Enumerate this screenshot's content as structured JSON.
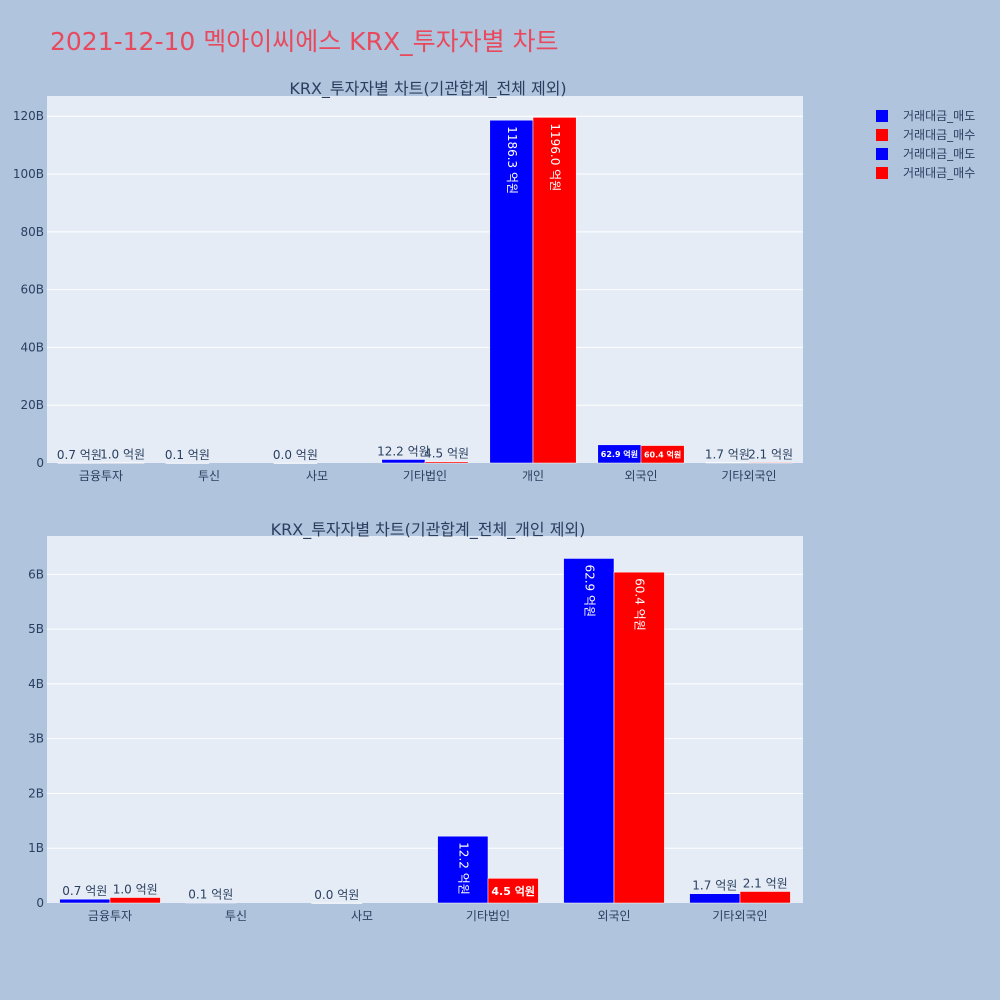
{
  "page": {
    "title": "2021-12-10 멕아이씨에스 KRX_투자자별 차트",
    "title_color": "#e8495d",
    "background": "#b0c4de",
    "plot_background": "#e5ecf6"
  },
  "legend": {
    "placement": "top-right",
    "items": [
      {
        "label": "거래대금_매도",
        "color": "#0000ff"
      },
      {
        "label": "거래대금_매수",
        "color": "#ff0000"
      },
      {
        "label": "거래대금_매도",
        "color": "#0000ff"
      },
      {
        "label": "거래대금_매수",
        "color": "#ff0000"
      }
    ]
  },
  "chart_data": [
    {
      "type": "bar",
      "title": "KRX_투자자별 차트(기관합계_전체 제외)",
      "categories": [
        "금융투자",
        "투신",
        "사모",
        "기타법인",
        "개인",
        "외국인",
        "기타외국인"
      ],
      "ylim": [
        0,
        127
      ],
      "yticks": [
        0,
        20,
        40,
        60,
        80,
        100,
        120
      ],
      "ytick_labels": [
        "0",
        "20B",
        "40B",
        "60B",
        "80B",
        "100B",
        "120B"
      ],
      "grid": true,
      "series": [
        {
          "name": "거래대금_매도",
          "color": "#0000ff",
          "values": [
            0.07,
            0.01,
            0.0,
            1.22,
            118.63,
            6.29,
            0.17
          ],
          "labels": [
            "0.7 억원",
            "0.1 억원",
            "0.0 억원",
            "12.2 억원",
            "1186.3 억원",
            "62.9 억원",
            "1.7 억원"
          ]
        },
        {
          "name": "거래대금_매수",
          "color": "#ff0000",
          "values": [
            0.1,
            null,
            null,
            0.45,
            119.6,
            6.04,
            0.21
          ],
          "labels": [
            "1.0 억원",
            null,
            null,
            "4.5 억원",
            "1196.0 억원",
            "60.4 억원",
            "2.1 억원"
          ]
        }
      ]
    },
    {
      "type": "bar",
      "title": "KRX_투자자별 차트(기관합계_전체_개인 제외)",
      "categories": [
        "금융투자",
        "투신",
        "사모",
        "기타법인",
        "외국인",
        "기타외국인"
      ],
      "ylim": [
        0,
        6.7
      ],
      "yticks": [
        0,
        1,
        2,
        3,
        4,
        5,
        6
      ],
      "ytick_labels": [
        "0",
        "1B",
        "2B",
        "3B",
        "4B",
        "5B",
        "6B"
      ],
      "grid": true,
      "series": [
        {
          "name": "거래대금_매도",
          "color": "#0000ff",
          "values": [
            0.07,
            0.01,
            0.0,
            1.22,
            6.29,
            0.17
          ],
          "labels": [
            "0.7 억원",
            "0.1 억원",
            "0.0 억원",
            "12.2 억원",
            "62.9 억원",
            "1.7 억원"
          ]
        },
        {
          "name": "거래대금_매수",
          "color": "#ff0000",
          "values": [
            0.1,
            null,
            null,
            0.45,
            6.04,
            0.21
          ],
          "labels": [
            "1.0 억원",
            null,
            null,
            "4.5 억원",
            "60.4 억원",
            "2.1 억원"
          ]
        }
      ]
    }
  ]
}
